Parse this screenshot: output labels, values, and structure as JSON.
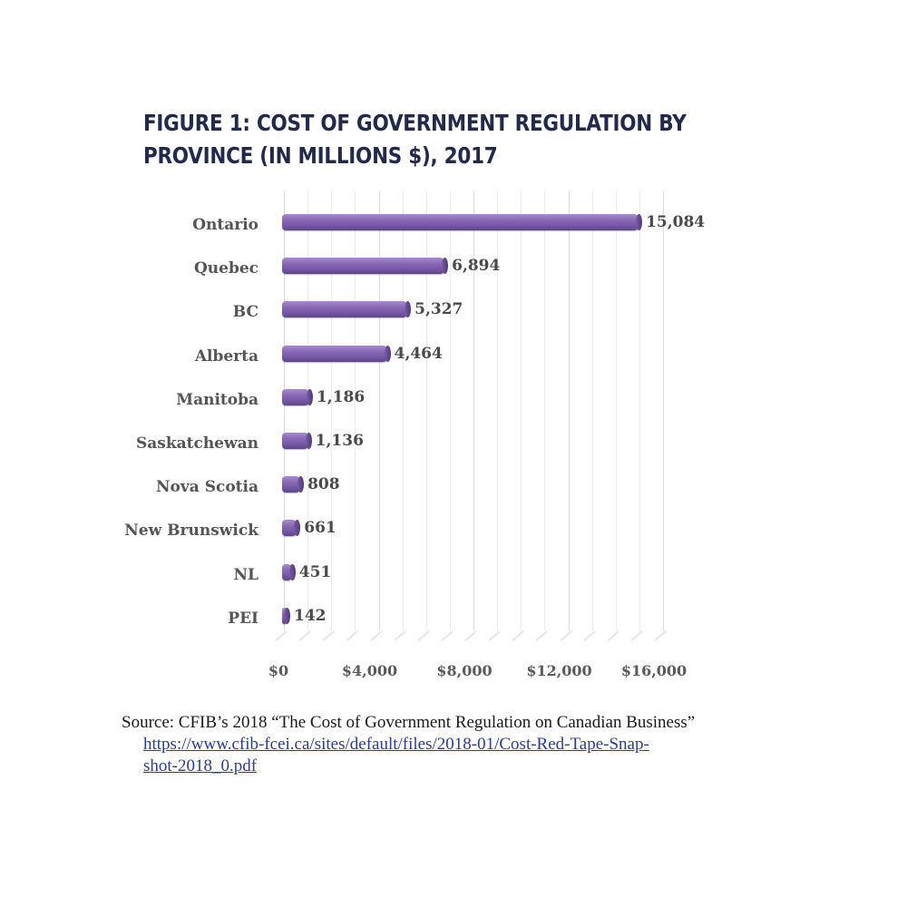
{
  "title": {
    "line1": "FIGURE 1: COST OF GOVERNMENT REGULATION BY",
    "line2": "PROVINCE (IN MILLIONS $), 2017"
  },
  "source": {
    "text": "Source: CFIB’s 2018 “The Cost of Government Regulation on Canadian Business”",
    "link_line1": "https://www.cfib-fcei.ca/sites/default/files/2018-01/Cost-Red-Tape-Snap-",
    "link_line2": "shot-2018_0.pdf"
  },
  "colors": {
    "bar": "#8a6bb5",
    "title": "#23294a",
    "link": "#2a3f8f"
  },
  "chart_data": {
    "type": "bar",
    "orientation": "horizontal",
    "title": "FIGURE 1: COST OF GOVERNMENT REGULATION BY PROVINCE (IN MILLIONS $), 2017",
    "xlabel": "",
    "ylabel": "",
    "categories": [
      "Ontario",
      "Quebec",
      "BC",
      "Alberta",
      "Manitoba",
      "Saskatchewan",
      "Nova Scotia",
      "New Brunswick",
      "NL",
      "PEI"
    ],
    "values": [
      15084,
      6894,
      5327,
      4464,
      1186,
      1136,
      808,
      661,
      451,
      142
    ],
    "value_labels": [
      "15,084",
      "6,894",
      "5,327",
      "4,464",
      "1,186",
      "1,136",
      "808",
      "661",
      "451",
      "142"
    ],
    "xlim": [
      0,
      16000
    ],
    "x_ticks": [
      0,
      4000,
      8000,
      12000,
      16000
    ],
    "x_tick_labels": [
      "$0",
      "$4,000",
      "$8,000",
      "$12,000",
      "$16,000"
    ],
    "grid": true,
    "legend": false,
    "style": "3d-cylinder"
  }
}
